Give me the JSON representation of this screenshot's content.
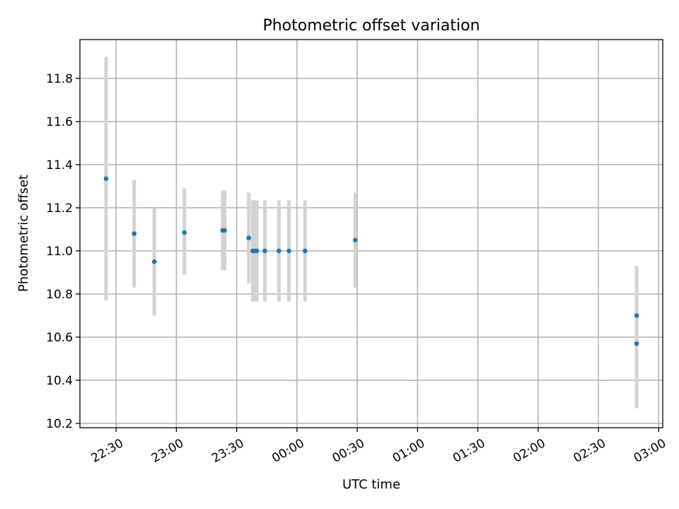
{
  "chart_data": {
    "type": "scatter",
    "title": "Photometric offset variation",
    "xlabel": "UTC time",
    "ylabel": "Photometric offset",
    "xlim": [
      "22:12",
      "03:02"
    ],
    "ylim": [
      10.18,
      11.98
    ],
    "grid": true,
    "x_ticks": [
      "22:30",
      "23:00",
      "23:30",
      "00:00",
      "00:30",
      "01:00",
      "01:30",
      "02:00",
      "02:30",
      "03:00"
    ],
    "y_ticks": [
      10.2,
      10.4,
      10.6,
      10.8,
      11.0,
      11.2,
      11.4,
      11.6,
      11.8
    ],
    "y_tick_labels": [
      "10.2",
      "10.4",
      "10.6",
      "10.8",
      "11.0",
      "11.2",
      "11.4",
      "11.6",
      "11.8"
    ],
    "point_color": "#1f77b4",
    "errorbar_color": "#d3d3d3",
    "points": [
      {
        "time": "22:25",
        "y": 11.335,
        "ylow": 10.77,
        "yhigh": 11.9
      },
      {
        "time": "22:39",
        "y": 11.08,
        "ylow": 10.83,
        "yhigh": 11.33
      },
      {
        "time": "22:49",
        "y": 10.95,
        "ylow": 10.7,
        "yhigh": 11.2
      },
      {
        "time": "23:04",
        "y": 11.085,
        "ylow": 10.89,
        "yhigh": 11.29
      },
      {
        "time": "23:23",
        "y": 11.095,
        "ylow": 10.91,
        "yhigh": 11.28
      },
      {
        "time": "23:24",
        "y": 11.095,
        "ylow": 10.91,
        "yhigh": 11.28
      },
      {
        "time": "23:36",
        "y": 11.06,
        "ylow": 10.85,
        "yhigh": 11.27
      },
      {
        "time": "23:38",
        "y": 11.0,
        "ylow": 10.765,
        "yhigh": 11.235
      },
      {
        "time": "23:39",
        "y": 11.0,
        "ylow": 10.765,
        "yhigh": 11.235
      },
      {
        "time": "23:40",
        "y": 11.0,
        "ylow": 10.765,
        "yhigh": 11.235
      },
      {
        "time": "23:44",
        "y": 11.0,
        "ylow": 10.765,
        "yhigh": 11.235
      },
      {
        "time": "23:51",
        "y": 11.0,
        "ylow": 10.765,
        "yhigh": 11.235
      },
      {
        "time": "23:56",
        "y": 11.0,
        "ylow": 10.765,
        "yhigh": 11.235
      },
      {
        "time": "00:04",
        "y": 11.0,
        "ylow": 10.765,
        "yhigh": 11.235
      },
      {
        "time": "00:29",
        "y": 11.05,
        "ylow": 10.83,
        "yhigh": 11.27
      },
      {
        "time": "02:49",
        "y": 10.7,
        "ylow": 10.48,
        "yhigh": 10.93
      },
      {
        "time": "02:49",
        "y": 10.57,
        "ylow": 10.27,
        "yhigh": 10.87
      }
    ]
  }
}
